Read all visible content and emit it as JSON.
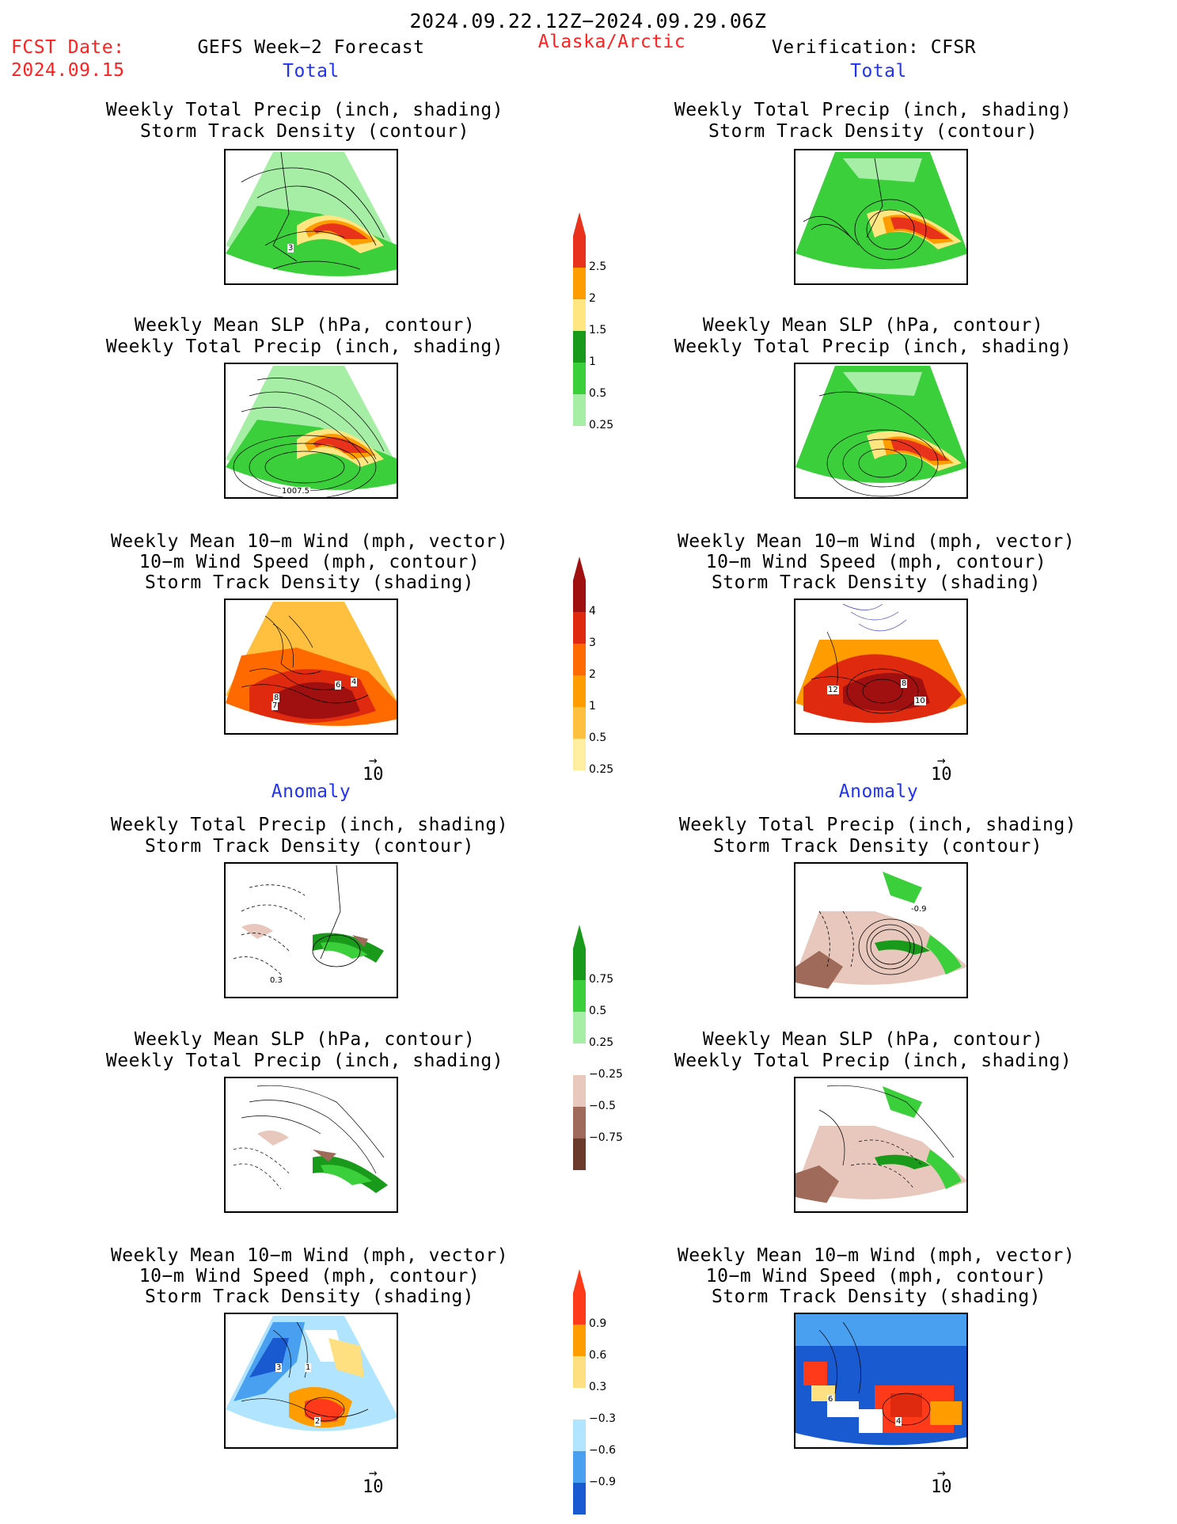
{
  "header": {
    "period": "2024.09.22.12Z−2024.09.29.06Z",
    "fcst_label": "FCST Date:",
    "fcst_date": "2024.09.15",
    "forecast_title": "GEFS Week−2 Forecast",
    "region": "Alaska/Arctic",
    "verification": "Verification: CFSR"
  },
  "sections": {
    "total": "Total",
    "anomaly": "Anomaly"
  },
  "titles": {
    "precip_track": [
      "Weekly Total Precip (inch, shading)",
      "Storm Track Density (contour)"
    ],
    "slp_precip": [
      "Weekly Mean SLP (hPa, contour)",
      "Weekly Total Precip (inch, shading)"
    ],
    "wind": [
      "Weekly Mean 10−m Wind (mph, vector)",
      "10−m Wind Speed (mph, contour)",
      "Storm Track Density (shading)"
    ]
  },
  "panel_labels": {
    "p1_left": "3",
    "p2_left": "1007.5",
    "p3_left_a": "8",
    "p3_left_b": "7",
    "p3_left_c": "6",
    "p3_left_d": "4",
    "p3_right_a": "12",
    "p3_right_b": "8",
    "p3_right_c": "10",
    "p4_left": "0.3",
    "p4_right": "-0.9",
    "p6_left_a": "3",
    "p6_left_b": "2",
    "p6_left_c": "1",
    "p6_right_a": "6",
    "p6_right_b": "4"
  },
  "vector_ref": {
    "symbol": "→",
    "value": "10"
  },
  "colorbars": {
    "precip": {
      "ticks": [
        "2.5",
        "2",
        "1.5",
        "1",
        "0.5",
        "0.25"
      ],
      "colors": [
        "#e8321c",
        "#ff9c00",
        "#ffe680",
        "#1a9a1a",
        "#3ccf3c",
        "#a6eea6"
      ]
    },
    "density": {
      "ticks": [
        "4",
        "3",
        "2",
        "1",
        "0.5",
        "0.25"
      ],
      "colors": [
        "#a01010",
        "#e02a10",
        "#ff6a00",
        "#ff9c00",
        "#ffc040",
        "#ffeea0"
      ]
    },
    "precip_anom": {
      "ticks": [
        "0.75",
        "0.5",
        "0.25",
        "−0.25",
        "−0.5",
        "−0.75"
      ],
      "colors": [
        "#1a9a1a",
        "#3ccf3c",
        "#a6eea6",
        "#ffffff",
        "#e8c8bc",
        "#a06a5a",
        "#6a3a2a"
      ]
    },
    "density_anom": {
      "ticks": [
        "0.9",
        "0.6",
        "0.3",
        "−0.3",
        "−0.6",
        "−0.9"
      ],
      "colors": [
        "#ff3a1a",
        "#ff9c00",
        "#ffe080",
        "#ffffff",
        "#b0e4ff",
        "#4aa0f0",
        "#1a5ad0"
      ]
    }
  }
}
